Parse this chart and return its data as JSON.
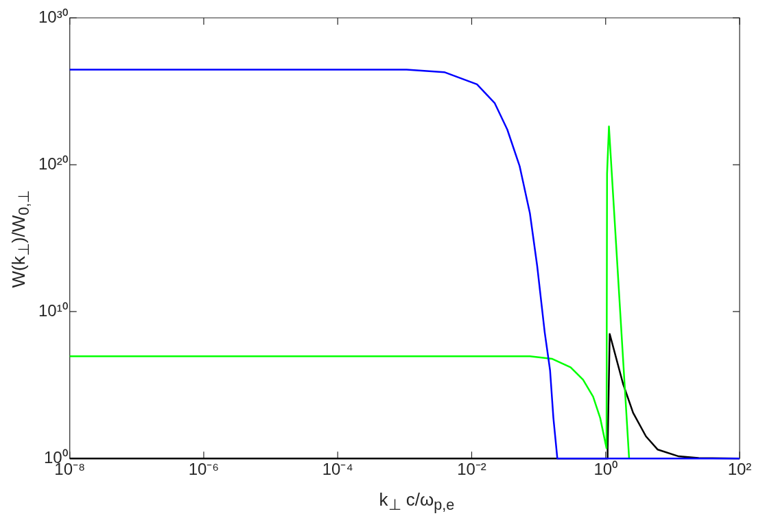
{
  "chart_data": {
    "type": "line",
    "xlabel": "k$_{⊥}$ c/ω$_{p,e}$",
    "ylabel": "W(k$_{⊥}$)/W$_{0,⊥}$",
    "log": "xy",
    "line_style": "solid",
    "marker": "none",
    "legend": false,
    "grid": false,
    "xlim": [
      1e-08,
      100
    ],
    "ylim": [
      1,
      1e+30
    ],
    "xticks": [
      {
        "value": 1e-08,
        "label": "10⁻⁸"
      },
      {
        "value": 1e-06,
        "label": "10⁻⁶"
      },
      {
        "value": 0.0001,
        "label": "10⁻⁴"
      },
      {
        "value": 0.01,
        "label": "10⁻²"
      },
      {
        "value": 1,
        "label": "10⁰"
      },
      {
        "value": 100,
        "label": "10²"
      }
    ],
    "yticks": [
      {
        "value": 1,
        "label": "10⁰"
      },
      {
        "value": 10000000000.0,
        "label": "10¹⁰"
      },
      {
        "value": 1e+20,
        "label": "10²⁰"
      },
      {
        "value": 1e+30,
        "label": "10³⁰"
      }
    ],
    "series": [
      {
        "color": "#000000",
        "x": [
          1e-08,
          1.06,
          1.07,
          1.15,
          1.82,
          2.57,
          4,
          6,
          12.3,
          24.5,
          100
        ],
        "values": [
          1,
          1,
          4,
          300000000.0,
          120000.0,
          1300.0,
          32,
          4,
          1.4,
          1.07,
          1
        ]
      },
      {
        "color": "#00ff00",
        "x": [
          1e-08,
          0.001,
          0.074,
          0.16,
          0.3,
          0.46,
          0.65,
          0.83,
          1.03,
          1.05,
          1.12,
          2.24
        ],
        "values": [
          9000000.0,
          9000000.0,
          9000000.0,
          6000000.0,
          1600000.0,
          230000.0,
          16000.0,
          560,
          5,
          2.5e+19,
          4e+22,
          1
        ]
      },
      {
        "color": "#0000ff",
        "x": [
          1e-08,
          0.00107,
          0.0039,
          0.012,
          0.022,
          0.034,
          0.052,
          0.074,
          0.095,
          0.123,
          0.148,
          0.166,
          0.19,
          100
        ],
        "values": [
          3e+26,
          3e+26,
          2e+26,
          3e+25,
          1.6e+24,
          2.5e+22,
          8e+19,
          5e+16,
          13000000000000.0,
          400000000.0,
          1000000.0,
          560,
          1,
          1
        ]
      }
    ]
  }
}
